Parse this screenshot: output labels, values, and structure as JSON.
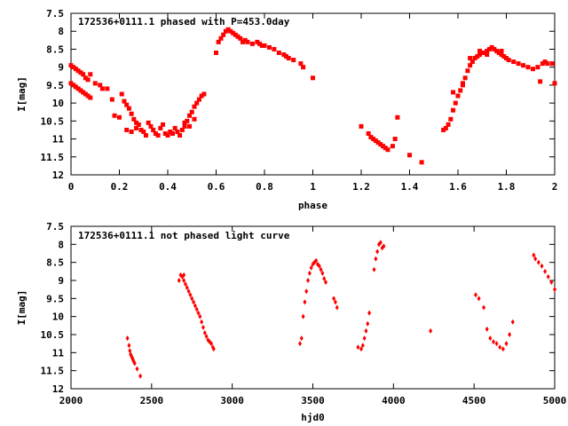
{
  "chart_data": [
    {
      "type": "scatter",
      "title": "172536+0111.1 phased with P=453.0day",
      "xlabel": "phase",
      "ylabel": "I[mag]",
      "xlim": [
        0,
        2
      ],
      "ylim": [
        12,
        7.5
      ],
      "xticks": [
        0,
        0.2,
        0.4,
        0.6,
        0.8,
        1,
        1.2,
        1.4,
        1.6,
        1.8,
        2
      ],
      "xtick_labels": [
        "0",
        "0.2",
        "0.4",
        "0.6",
        "0.8",
        "1",
        "1.2",
        "1.4",
        "1.6",
        "1.8",
        "2"
      ],
      "yticks": [
        7.5,
        8,
        8.5,
        9,
        9.5,
        10,
        10.5,
        11,
        11.5,
        12
      ],
      "ytick_labels": [
        "7.5",
        "8",
        "8.5",
        "9",
        "9.5",
        "10",
        "10.5",
        "11",
        "11.5",
        "12"
      ],
      "marker_color": "#ff0000",
      "series": [
        {
          "name": "phased",
          "points": [
            [
              0.0,
              8.95
            ],
            [
              0.01,
              9.0
            ],
            [
              0.02,
              9.05
            ],
            [
              0.03,
              9.1
            ],
            [
              0.04,
              9.15
            ],
            [
              0.05,
              9.2
            ],
            [
              0.06,
              9.3
            ],
            [
              0.07,
              9.35
            ],
            [
              0.08,
              9.2
            ],
            [
              0.0,
              9.45
            ],
            [
              0.01,
              9.5
            ],
            [
              0.02,
              9.55
            ],
            [
              0.03,
              9.6
            ],
            [
              0.04,
              9.65
            ],
            [
              0.05,
              9.7
            ],
            [
              0.06,
              9.75
            ],
            [
              0.07,
              9.8
            ],
            [
              0.08,
              9.85
            ],
            [
              0.1,
              9.45
            ],
            [
              0.12,
              9.5
            ],
            [
              0.13,
              9.6
            ],
            [
              0.15,
              9.6
            ],
            [
              0.17,
              9.9
            ],
            [
              0.18,
              10.35
            ],
            [
              0.2,
              10.4
            ],
            [
              0.21,
              9.75
            ],
            [
              0.22,
              9.95
            ],
            [
              0.23,
              10.05
            ],
            [
              0.24,
              10.15
            ],
            [
              0.25,
              10.3
            ],
            [
              0.26,
              10.45
            ],
            [
              0.27,
              10.55
            ],
            [
              0.23,
              10.75
            ],
            [
              0.25,
              10.8
            ],
            [
              0.27,
              10.7
            ],
            [
              0.28,
              10.6
            ],
            [
              0.29,
              10.75
            ],
            [
              0.3,
              10.8
            ],
            [
              0.31,
              10.9
            ],
            [
              0.32,
              10.55
            ],
            [
              0.33,
              10.65
            ],
            [
              0.34,
              10.75
            ],
            [
              0.35,
              10.85
            ],
            [
              0.36,
              10.9
            ],
            [
              0.37,
              10.7
            ],
            [
              0.38,
              10.6
            ],
            [
              0.39,
              10.85
            ],
            [
              0.4,
              10.9
            ],
            [
              0.41,
              10.8
            ],
            [
              0.42,
              10.85
            ],
            [
              0.43,
              10.7
            ],
            [
              0.44,
              10.8
            ],
            [
              0.45,
              10.9
            ],
            [
              0.46,
              10.75
            ],
            [
              0.47,
              10.65
            ],
            [
              0.48,
              10.5
            ],
            [
              0.49,
              10.35
            ],
            [
              0.5,
              10.25
            ],
            [
              0.51,
              10.1
            ],
            [
              0.52,
              10.0
            ],
            [
              0.53,
              9.9
            ],
            [
              0.54,
              9.8
            ],
            [
              0.55,
              9.75
            ],
            [
              0.47,
              10.55
            ],
            [
              0.49,
              10.65
            ],
            [
              0.51,
              10.45
            ],
            [
              0.6,
              8.6
            ],
            [
              0.61,
              8.3
            ],
            [
              0.62,
              8.2
            ],
            [
              0.63,
              8.1
            ],
            [
              0.64,
              8.0
            ],
            [
              0.65,
              7.95
            ],
            [
              0.66,
              8.0
            ],
            [
              0.67,
              8.05
            ],
            [
              0.68,
              8.1
            ],
            [
              0.69,
              8.15
            ],
            [
              0.7,
              8.2
            ],
            [
              0.71,
              8.3
            ],
            [
              0.72,
              8.25
            ],
            [
              0.73,
              8.3
            ],
            [
              0.75,
              8.35
            ],
            [
              0.77,
              8.3
            ],
            [
              0.78,
              8.35
            ],
            [
              0.79,
              8.4
            ],
            [
              0.8,
              8.4
            ],
            [
              0.82,
              8.45
            ],
            [
              0.84,
              8.5
            ],
            [
              0.86,
              8.6
            ],
            [
              0.88,
              8.65
            ],
            [
              0.89,
              8.7
            ],
            [
              0.9,
              8.75
            ],
            [
              0.92,
              8.8
            ],
            [
              0.95,
              8.9
            ],
            [
              0.96,
              9.0
            ],
            [
              1.0,
              9.3
            ],
            [
              1.2,
              10.65
            ],
            [
              1.23,
              10.85
            ],
            [
              1.24,
              10.95
            ],
            [
              1.25,
              11.0
            ],
            [
              1.26,
              11.05
            ],
            [
              1.27,
              11.1
            ],
            [
              1.28,
              11.15
            ],
            [
              1.29,
              11.2
            ],
            [
              1.3,
              11.25
            ],
            [
              1.31,
              11.3
            ],
            [
              1.33,
              11.2
            ],
            [
              1.34,
              11.0
            ],
            [
              1.35,
              10.4
            ],
            [
              1.4,
              11.45
            ],
            [
              1.45,
              11.65
            ],
            [
              1.54,
              10.75
            ],
            [
              1.55,
              10.7
            ],
            [
              1.56,
              10.6
            ],
            [
              1.57,
              10.45
            ],
            [
              1.58,
              10.2
            ],
            [
              1.59,
              10.0
            ],
            [
              1.6,
              9.8
            ],
            [
              1.61,
              9.65
            ],
            [
              1.62,
              9.5
            ],
            [
              1.63,
              9.3
            ],
            [
              1.64,
              9.1
            ],
            [
              1.65,
              8.95
            ],
            [
              1.66,
              8.85
            ],
            [
              1.67,
              8.75
            ],
            [
              1.68,
              8.7
            ],
            [
              1.69,
              8.65
            ],
            [
              1.7,
              8.6
            ],
            [
              1.71,
              8.6
            ],
            [
              1.72,
              8.55
            ],
            [
              1.73,
              8.5
            ],
            [
              1.74,
              8.45
            ],
            [
              1.75,
              8.5
            ],
            [
              1.76,
              8.55
            ],
            [
              1.77,
              8.6
            ],
            [
              1.78,
              8.65
            ],
            [
              1.79,
              8.7
            ],
            [
              1.8,
              8.75
            ],
            [
              1.81,
              8.8
            ],
            [
              1.83,
              8.85
            ],
            [
              1.85,
              8.9
            ],
            [
              1.87,
              8.95
            ],
            [
              1.89,
              9.0
            ],
            [
              1.91,
              9.05
            ],
            [
              1.93,
              9.0
            ],
            [
              1.95,
              8.9
            ],
            [
              1.96,
              8.85
            ],
            [
              1.97,
              8.9
            ],
            [
              1.99,
              8.9
            ],
            [
              1.94,
              9.4
            ],
            [
              2.0,
              9.45
            ],
            [
              1.58,
              9.7
            ],
            [
              1.62,
              9.45
            ],
            [
              1.65,
              8.75
            ],
            [
              1.69,
              8.55
            ],
            [
              1.72,
              8.65
            ],
            [
              1.78,
              8.55
            ]
          ]
        }
      ]
    },
    {
      "type": "scatter",
      "title": "172536+0111.1 not phased light curve",
      "xlabel": "hjd0",
      "ylabel": "I[mag]",
      "xlim": [
        2000,
        5000
      ],
      "ylim": [
        12,
        7.5
      ],
      "xticks": [
        2000,
        2500,
        3000,
        3500,
        4000,
        4500,
        5000
      ],
      "xtick_labels": [
        "2000",
        "2500",
        "3000",
        "3500",
        "4000",
        "4500",
        "5000"
      ],
      "yticks": [
        7.5,
        8,
        8.5,
        9,
        9.5,
        10,
        10.5,
        11,
        11.5,
        12
      ],
      "ytick_labels": [
        "7.5",
        "8",
        "8.5",
        "9",
        "9.5",
        "10",
        "10.5",
        "11",
        "11.5",
        "12"
      ],
      "marker_color": "#ff0000",
      "series": [
        {
          "name": "light curve",
          "points": [
            [
              2350,
              10.6
            ],
            [
              2360,
              10.8
            ],
            [
              2365,
              10.95
            ],
            [
              2370,
              11.05
            ],
            [
              2375,
              11.1
            ],
            [
              2380,
              11.15
            ],
            [
              2385,
              11.2
            ],
            [
              2390,
              11.25
            ],
            [
              2395,
              11.3
            ],
            [
              2410,
              11.45
            ],
            [
              2430,
              11.65
            ],
            [
              2680,
              8.85
            ],
            [
              2690,
              8.9
            ],
            [
              2700,
              9.0
            ],
            [
              2710,
              9.1
            ],
            [
              2720,
              9.2
            ],
            [
              2730,
              9.3
            ],
            [
              2740,
              9.4
            ],
            [
              2750,
              9.5
            ],
            [
              2760,
              9.6
            ],
            [
              2770,
              9.7
            ],
            [
              2780,
              9.8
            ],
            [
              2790,
              9.9
            ],
            [
              2800,
              10.0
            ],
            [
              2810,
              10.15
            ],
            [
              2820,
              10.3
            ],
            [
              2830,
              10.45
            ],
            [
              2840,
              10.55
            ],
            [
              2850,
              10.65
            ],
            [
              2860,
              10.7
            ],
            [
              2870,
              10.75
            ],
            [
              2880,
              10.85
            ],
            [
              2885,
              10.9
            ],
            [
              2670,
              9.0
            ],
            [
              2700,
              8.85
            ],
            [
              3420,
              10.75
            ],
            [
              3430,
              10.6
            ],
            [
              3440,
              10.0
            ],
            [
              3450,
              9.6
            ],
            [
              3460,
              9.3
            ],
            [
              3470,
              9.0
            ],
            [
              3480,
              8.8
            ],
            [
              3490,
              8.65
            ],
            [
              3500,
              8.55
            ],
            [
              3510,
              8.5
            ],
            [
              3520,
              8.45
            ],
            [
              3530,
              8.55
            ],
            [
              3540,
              8.6
            ],
            [
              3550,
              8.7
            ],
            [
              3560,
              8.8
            ],
            [
              3570,
              8.95
            ],
            [
              3580,
              9.05
            ],
            [
              3630,
              9.5
            ],
            [
              3640,
              9.6
            ],
            [
              3650,
              9.75
            ],
            [
              3780,
              10.85
            ],
            [
              3800,
              10.9
            ],
            [
              3810,
              10.8
            ],
            [
              3820,
              10.6
            ],
            [
              3830,
              10.4
            ],
            [
              3840,
              10.2
            ],
            [
              3850,
              9.9
            ],
            [
              3880,
              8.7
            ],
            [
              3890,
              8.4
            ],
            [
              3900,
              8.2
            ],
            [
              3910,
              8.0
            ],
            [
              3920,
              7.95
            ],
            [
              3930,
              8.1
            ],
            [
              3940,
              8.05
            ],
            [
              4230,
              10.4
            ],
            [
              4510,
              9.4
            ],
            [
              4530,
              9.5
            ],
            [
              4560,
              9.75
            ],
            [
              4580,
              10.35
            ],
            [
              4600,
              10.6
            ],
            [
              4620,
              10.7
            ],
            [
              4640,
              10.75
            ],
            [
              4660,
              10.85
            ],
            [
              4680,
              10.9
            ],
            [
              4700,
              10.75
            ],
            [
              4720,
              10.5
            ],
            [
              4740,
              10.15
            ],
            [
              4870,
              8.3
            ],
            [
              4880,
              8.4
            ],
            [
              4900,
              8.5
            ],
            [
              4920,
              8.6
            ],
            [
              4940,
              8.75
            ],
            [
              4960,
              8.9
            ],
            [
              4980,
              9.05
            ],
            [
              5000,
              9.25
            ]
          ]
        }
      ]
    }
  ]
}
